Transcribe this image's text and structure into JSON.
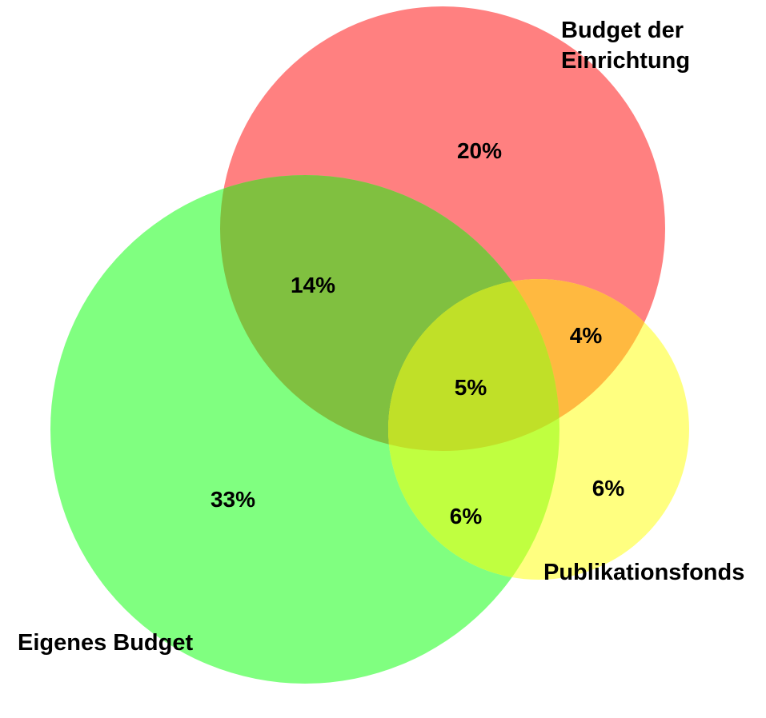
{
  "sets": {
    "einrichtung": {
      "label_lines": [
        "Budget der",
        "Einrichtung"
      ],
      "color": "#ff8080"
    },
    "eigenes": {
      "label": "Eigenes Budget",
      "color": "#80ff80"
    },
    "publikation": {
      "label": "Publikationsfonds",
      "color": "#ffff80"
    }
  },
  "regions": {
    "einrichtung_only": "20%",
    "eigenes_einrichtung": "14%",
    "einrichtung_publikation": "4%",
    "all_three": "5%",
    "eigenes_only": "33%",
    "eigenes_publikation": "6%",
    "publikation_only": "6%"
  },
  "overlap_colors": {
    "eigenes_einrichtung": "#80c040",
    "einrichtung_publikation": "#ffb940",
    "eigenes_publikation": "#c0ff40",
    "all_three": "#c0e028"
  }
}
